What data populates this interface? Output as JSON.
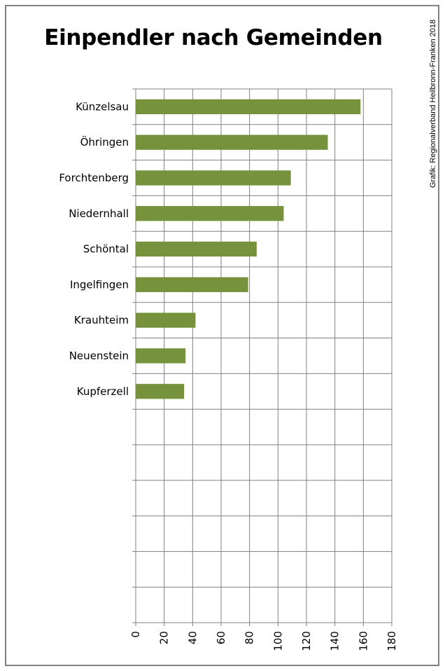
{
  "chart_data": {
    "type": "bar",
    "orientation": "horizontal",
    "title": "Einpendler nach Gemeinden",
    "credit": "Grafik: Regionalverband Heilbronn-Franken 2018",
    "categories": [
      "Künzelsau",
      "Öhringen",
      "Forchtenberg",
      "Niedernhall",
      "Schöntal",
      "Ingelfingen",
      "Krauhteim",
      "Neuenstein",
      "Kupferzell",
      "",
      "",
      "",
      "",
      "",
      ""
    ],
    "values": [
      158,
      135,
      109,
      104,
      85,
      79,
      42,
      35,
      34,
      null,
      null,
      null,
      null,
      null,
      null
    ],
    "xlim": [
      0,
      180
    ],
    "xticks": [
      "0",
      "20",
      "40",
      "60",
      "80",
      "100",
      "120",
      "140",
      "160",
      "180"
    ],
    "xlabel": "",
    "ylabel": "",
    "grid": true,
    "legend": "none",
    "colors": {
      "bar": "#76923c",
      "grid": "#808080",
      "frame": "#808080"
    }
  }
}
